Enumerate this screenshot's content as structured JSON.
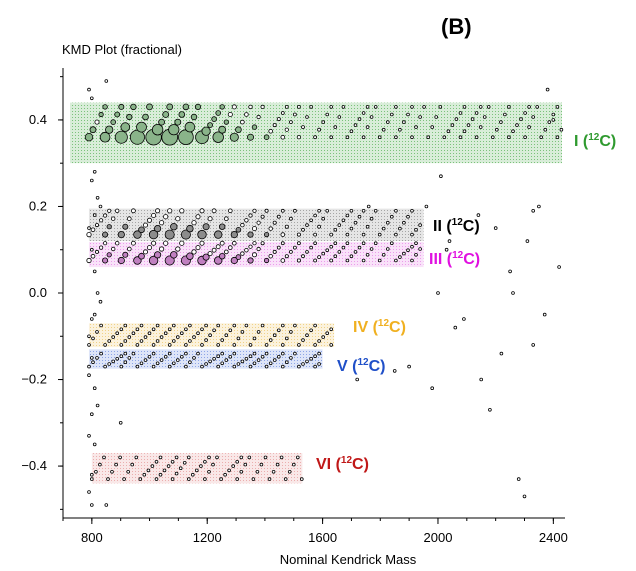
{
  "panel_label": "(B)",
  "chart_data": {
    "type": "scatter",
    "title": "KMD Plot (fractional)",
    "xlabel": "Nominal Kendrick Mass",
    "ylabel": "",
    "xlim": [
      700,
      2430
    ],
    "ylim": [
      -0.52,
      0.52
    ],
    "x_ticks": [
      800,
      1200,
      1600,
      2000,
      2400
    ],
    "y_ticks": [
      0.4,
      0.2,
      0.0,
      -0.2,
      -0.4
    ],
    "x_tick_labels": [
      "800",
      "1200",
      "1600",
      "2000",
      "2400"
    ],
    "y_tick_labels": [
      "0.4",
      "0.2",
      "0.0",
      "−0.2",
      "−0.4"
    ],
    "grid": false,
    "bands": [
      {
        "id": "I",
        "label": "I (",
        "sup": "12",
        "suffix": "C)",
        "x_range": [
          700,
          2430
        ],
        "y_range": [
          0.3,
          0.44
        ],
        "color": "#2e9e2e",
        "text_color": "#2f9a2f"
      },
      {
        "id": "II",
        "label": "II (",
        "sup": "12",
        "suffix": "C)",
        "x_range": [
          790,
          1950
        ],
        "y_range": [
          0.12,
          0.195
        ],
        "color": "#707070",
        "text_color": "#000000"
      },
      {
        "id": "III",
        "label": "III (",
        "sup": "12",
        "suffix": "C)",
        "x_range": [
          790,
          1950
        ],
        "y_range": [
          0.06,
          0.118
        ],
        "color": "#e060e0",
        "text_color": "#e010e0"
      },
      {
        "id": "IV",
        "label": "IV (",
        "sup": "12",
        "suffix": "C)",
        "x_range": [
          790,
          1640
        ],
        "y_range": [
          -0.125,
          -0.07
        ],
        "color": "#e8b840",
        "text_color": "#f0b020"
      },
      {
        "id": "V",
        "label": "V (",
        "sup": "12",
        "suffix": "C)",
        "x_range": [
          790,
          1600
        ],
        "y_range": [
          -0.175,
          -0.13
        ],
        "color": "#4a70d8",
        "text_color": "#1f4fc8"
      },
      {
        "id": "VI",
        "label": "VI (",
        "sup": "12",
        "suffix": "C)",
        "x_range": [
          800,
          1530
        ],
        "y_range": [
          -0.44,
          -0.37
        ],
        "color": "#e08080",
        "text_color": "#c01818"
      }
    ],
    "series": [
      {
        "band": "I",
        "spacing": 56,
        "x_start": 790,
        "x_end": 2430,
        "y_low": 0.36,
        "y_high": 0.43,
        "slope_per_100": 0.09,
        "fill": "#8ab48a"
      },
      {
        "band": "II",
        "spacing": 56,
        "x_start": 790,
        "x_end": 1950,
        "y_low": 0.135,
        "y_high": 0.19,
        "slope_per_100": 0.09,
        "fill": "#8c8c8c"
      },
      {
        "band": "III",
        "spacing": 56,
        "x_start": 790,
        "x_end": 1950,
        "y_low": 0.075,
        "y_high": 0.115,
        "slope_per_100": 0.09,
        "fill": "#c080c0"
      },
      {
        "band": "IV",
        "spacing": 56,
        "x_start": 790,
        "x_end": 1640,
        "y_low": -0.12,
        "y_high": -0.075,
        "slope_per_100": 0.09,
        "fill": "#a0a0a0"
      },
      {
        "band": "V",
        "spacing": 56,
        "x_start": 790,
        "x_end": 1600,
        "y_low": -0.17,
        "y_high": -0.14,
        "slope_per_100": 0.09,
        "fill": "#a0a0a0"
      },
      {
        "band": "VI",
        "spacing": 56,
        "x_start": 800,
        "x_end": 1530,
        "y_low": -0.43,
        "y_high": -0.38,
        "slope_per_100": 0.09,
        "fill": "#a0a0a0"
      }
    ]
  }
}
